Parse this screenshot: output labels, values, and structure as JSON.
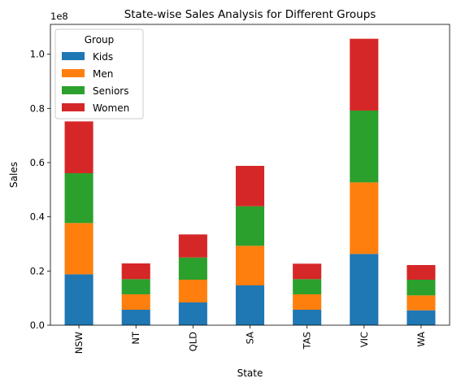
{
  "chart_data": {
    "type": "bar",
    "stacked": true,
    "title": "State-wise Sales Analysis for Different Groups",
    "xlabel": "State",
    "ylabel": "Sales",
    "offset_text": "1e8",
    "categories": [
      "NSW",
      "NT",
      "QLD",
      "SA",
      "TAS",
      "VIC",
      "WA"
    ],
    "yticks": [
      "0.0",
      "0.2",
      "0.4",
      "0.6",
      "0.8",
      "1.0"
    ],
    "ytick_values": [
      0.0,
      0.2,
      0.4,
      0.6,
      0.8,
      1.0
    ],
    "ylim": [
      0,
      1.11
    ],
    "scale": 100000000,
    "legend": {
      "title": "Group",
      "placement": "upper left"
    },
    "series": [
      {
        "name": "Kids",
        "color": "#1f77b4",
        "values": [
          0.188,
          0.057,
          0.084,
          0.147,
          0.057,
          0.263,
          0.055
        ]
      },
      {
        "name": "Men",
        "color": "#ff7f0e",
        "values": [
          0.189,
          0.057,
          0.084,
          0.146,
          0.057,
          0.264,
          0.055
        ]
      },
      {
        "name": "Seniors",
        "color": "#2ca02c",
        "values": [
          0.184,
          0.056,
          0.082,
          0.146,
          0.056,
          0.265,
          0.058
        ]
      },
      {
        "name": "Women",
        "color": "#d62728",
        "values": [
          0.191,
          0.058,
          0.085,
          0.149,
          0.057,
          0.265,
          0.054
        ]
      }
    ]
  }
}
